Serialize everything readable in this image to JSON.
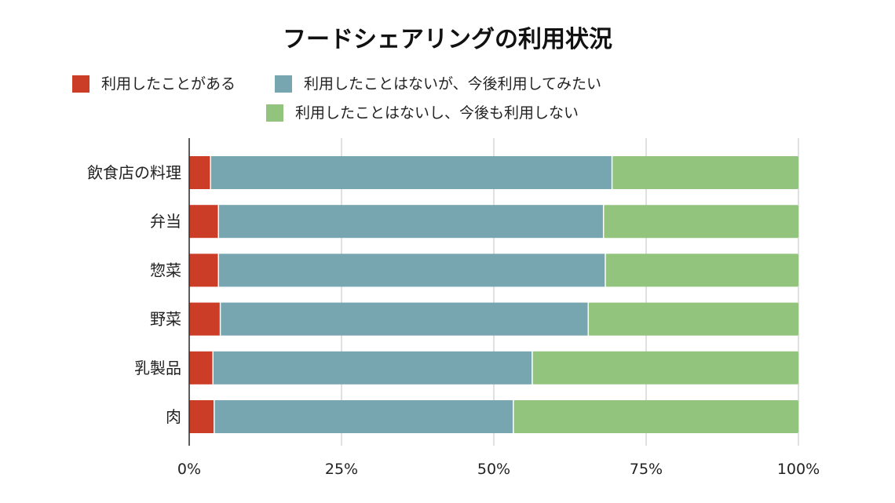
{
  "chart_data": {
    "type": "bar",
    "orientation": "horizontal",
    "stacked": "percent",
    "title": "フードシェアリングの利用状況",
    "categories": [
      "飲食店の料理",
      "弁当",
      "惣菜",
      "野菜",
      "乳製品",
      "肉"
    ],
    "series": [
      {
        "name": "利用したことがある",
        "color": "#cc3d27",
        "values": [
          3.5,
          4.8,
          4.8,
          5.1,
          3.9,
          4.1
        ]
      },
      {
        "name": "利用したことはないが、今後利用してみたい",
        "color": "#77a5b0",
        "values": [
          65.9,
          63.2,
          63.5,
          60.4,
          52.4,
          49.1
        ]
      },
      {
        "name": "利用したことはないし、今後も利用しない",
        "color": "#93c47d",
        "values": [
          30.6,
          32.0,
          31.7,
          34.5,
          43.7,
          46.8
        ]
      }
    ],
    "xlim": [
      0,
      100
    ],
    "xticks": [
      "0%",
      "25%",
      "50%",
      "75%",
      "100%"
    ],
    "grid": true,
    "legend_position": "top"
  }
}
